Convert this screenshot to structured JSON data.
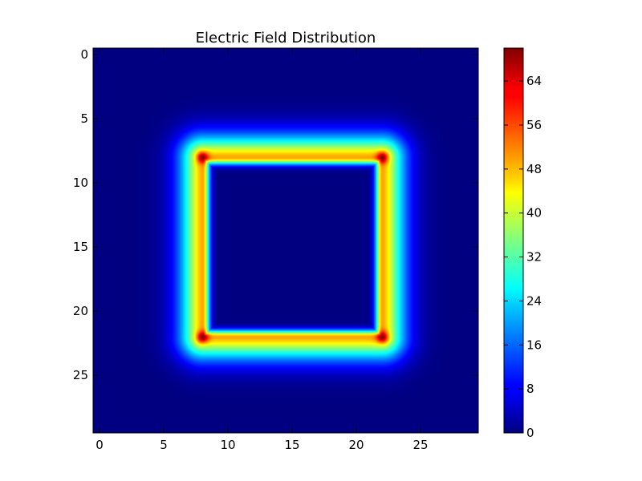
{
  "chart_data": {
    "type": "heatmap",
    "title": "Electric Field Distribution",
    "xlabel": "",
    "ylabel": "",
    "grid": false,
    "colormap": "jet",
    "grid_size": [
      30,
      30
    ],
    "origin": "upper",
    "x_ticks": [
      0,
      5,
      10,
      15,
      20,
      25
    ],
    "y_ticks": [
      0,
      5,
      10,
      15,
      20,
      25
    ],
    "colorbar": {
      "range": [
        0,
        70
      ],
      "ticks": [
        0,
        8,
        16,
        24,
        32,
        40,
        48,
        56,
        64
      ]
    },
    "structure": {
      "shape": "square-loop",
      "corners": [
        [
          8,
          8
        ],
        [
          22,
          8
        ],
        [
          22,
          22
        ],
        [
          8,
          22
        ]
      ],
      "edge_value": 50,
      "corner_value": 70,
      "interior_value": 0,
      "exterior_value": 0
    }
  }
}
